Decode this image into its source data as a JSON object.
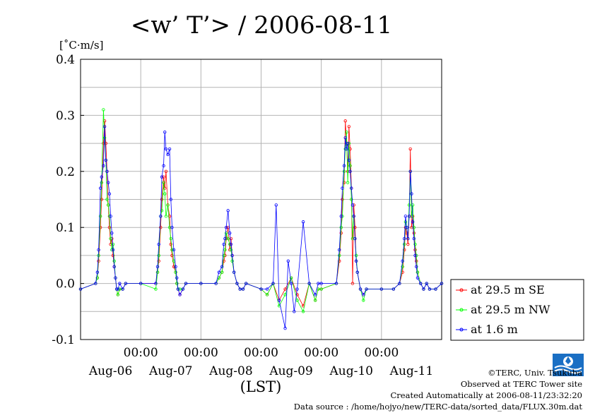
{
  "chart_data": {
    "type": "line",
    "title": "<w’ T’> / 2006-08-11",
    "ylabel": "[˚C·m/s]",
    "xlabel": "(LST)",
    "ylim": [
      -0.1,
      0.4
    ],
    "yticks": [
      "0.4",
      "0.3",
      "0.2",
      "0.1",
      "0.0",
      "-0.1"
    ],
    "xlim_days": [
      0,
      6
    ],
    "xtick_times": [
      "00:00",
      "00:00",
      "00:00",
      "00:00",
      "00:00"
    ],
    "xtick_days": [
      "Aug-06",
      "Aug-07",
      "Aug-08",
      "Aug-09",
      "Aug-10",
      "Aug-11"
    ],
    "grid": true,
    "legend_position": "right",
    "series": [
      {
        "name": "at 29.5 m SE",
        "color": "#ff0000",
        "x": [
          0.0,
          0.25,
          0.28,
          0.3,
          0.33,
          0.35,
          0.38,
          0.4,
          0.42,
          0.44,
          0.46,
          0.48,
          0.5,
          0.52,
          0.54,
          0.56,
          0.58,
          0.6,
          0.62,
          0.65,
          0.7,
          0.75,
          1.0,
          1.25,
          1.28,
          1.3,
          1.33,
          1.35,
          1.38,
          1.4,
          1.42,
          1.45,
          1.48,
          1.5,
          1.52,
          1.55,
          1.58,
          1.6,
          1.62,
          1.65,
          1.7,
          1.75,
          2.0,
          2.25,
          2.3,
          2.35,
          2.38,
          2.4,
          2.42,
          2.45,
          2.48,
          2.5,
          2.52,
          2.55,
          2.6,
          2.65,
          2.7,
          2.75,
          3.0,
          3.1,
          3.2,
          3.3,
          3.4,
          3.5,
          3.6,
          3.7,
          3.8,
          3.9,
          3.95,
          4.0,
          4.25,
          4.3,
          4.33,
          4.35,
          4.38,
          4.4,
          4.42,
          4.44,
          4.46,
          4.48,
          4.5,
          4.52,
          4.54,
          4.56,
          4.58,
          4.6,
          4.65,
          4.7,
          4.75,
          5.0,
          5.2,
          5.3,
          5.35,
          5.38,
          5.4,
          5.42,
          5.44,
          5.46,
          5.48,
          5.5,
          5.52,
          5.54,
          5.56,
          5.58,
          5.6,
          5.65,
          5.7,
          5.75,
          5.8,
          5.9,
          6.0
        ],
        "y": [
          -0.01,
          0.0,
          0.01,
          0.04,
          0.1,
          0.15,
          0.25,
          0.29,
          0.25,
          0.2,
          0.14,
          0.1,
          0.07,
          0.08,
          0.05,
          0.03,
          0.01,
          -0.01,
          -0.02,
          -0.01,
          -0.01,
          0.0,
          0.0,
          0.0,
          0.02,
          0.04,
          0.1,
          0.15,
          0.19,
          0.17,
          0.2,
          0.14,
          0.12,
          0.07,
          0.05,
          0.03,
          0.02,
          0.0,
          -0.01,
          -0.02,
          -0.01,
          0.0,
          0.0,
          0.0,
          0.01,
          0.02,
          0.04,
          0.05,
          0.08,
          0.1,
          0.06,
          0.08,
          0.05,
          0.02,
          0.0,
          -0.01,
          -0.01,
          0.0,
          -0.01,
          -0.02,
          0.0,
          -0.03,
          -0.01,
          0.01,
          -0.02,
          -0.04,
          0.0,
          -0.03,
          -0.01,
          -0.01,
          0.0,
          0.04,
          0.09,
          0.15,
          0.18,
          0.29,
          0.25,
          0.2,
          0.28,
          0.24,
          0.17,
          0.0,
          0.14,
          0.1,
          0.04,
          0.02,
          -0.01,
          -0.02,
          -0.01,
          -0.01,
          -0.01,
          0.0,
          0.02,
          0.06,
          0.1,
          0.09,
          0.07,
          0.12,
          0.24,
          0.1,
          0.12,
          0.09,
          0.06,
          0.04,
          0.02,
          0.0,
          -0.01,
          0.0,
          -0.01,
          -0.01,
          0.0
        ]
      },
      {
        "name": "at 29.5 m NW",
        "color": "#00ff00",
        "x": [
          0.0,
          0.25,
          0.28,
          0.3,
          0.33,
          0.35,
          0.38,
          0.4,
          0.42,
          0.44,
          0.46,
          0.48,
          0.5,
          0.52,
          0.54,
          0.56,
          0.58,
          0.6,
          0.62,
          0.65,
          0.7,
          0.75,
          1.0,
          1.25,
          1.28,
          1.3,
          1.33,
          1.35,
          1.38,
          1.4,
          1.42,
          1.45,
          1.48,
          1.5,
          1.52,
          1.55,
          1.58,
          1.6,
          1.62,
          1.65,
          1.7,
          1.75,
          2.0,
          2.25,
          2.3,
          2.35,
          2.38,
          2.4,
          2.42,
          2.45,
          2.48,
          2.5,
          2.52,
          2.55,
          2.6,
          2.65,
          2.7,
          2.75,
          3.0,
          3.1,
          3.2,
          3.3,
          3.4,
          3.5,
          3.6,
          3.7,
          3.8,
          3.9,
          3.95,
          4.0,
          4.25,
          4.3,
          4.33,
          4.35,
          4.38,
          4.4,
          4.42,
          4.44,
          4.46,
          4.48,
          4.5,
          4.52,
          4.54,
          4.56,
          4.58,
          4.6,
          4.65,
          4.7,
          4.75,
          5.0,
          5.2,
          5.3,
          5.35,
          5.38,
          5.4,
          5.42,
          5.44,
          5.46,
          5.48,
          5.5,
          5.52,
          5.54,
          5.56,
          5.58,
          5.6,
          5.65,
          5.7,
          5.75,
          5.8,
          5.9,
          6.0
        ],
        "y": [
          -0.01,
          0.0,
          0.01,
          0.05,
          0.12,
          0.18,
          0.31,
          0.26,
          0.22,
          0.15,
          0.14,
          0.12,
          0.08,
          0.06,
          0.07,
          0.04,
          0.01,
          -0.01,
          -0.02,
          -0.01,
          -0.01,
          0.0,
          0.0,
          -0.01,
          0.02,
          0.05,
          0.12,
          0.13,
          0.18,
          0.16,
          0.12,
          0.14,
          0.1,
          0.08,
          0.06,
          0.04,
          0.02,
          0.0,
          -0.01,
          -0.01,
          -0.01,
          0.0,
          0.0,
          0.0,
          0.01,
          0.02,
          0.05,
          0.06,
          0.09,
          0.08,
          0.07,
          0.06,
          0.04,
          0.02,
          0.0,
          -0.01,
          -0.01,
          0.0,
          -0.01,
          -0.02,
          0.0,
          -0.04,
          -0.02,
          0.01,
          -0.03,
          -0.05,
          0.0,
          -0.03,
          -0.01,
          -0.01,
          0.0,
          0.05,
          0.1,
          0.12,
          0.2,
          0.24,
          0.27,
          0.18,
          0.25,
          0.21,
          0.15,
          0.08,
          0.12,
          0.08,
          0.05,
          0.02,
          -0.01,
          -0.03,
          -0.01,
          -0.01,
          -0.01,
          0.0,
          0.03,
          0.07,
          0.11,
          0.1,
          0.08,
          0.14,
          0.2,
          0.12,
          0.14,
          0.1,
          0.07,
          0.05,
          0.02,
          0.0,
          -0.01,
          0.0,
          -0.01,
          -0.01,
          0.0
        ]
      },
      {
        "name": "at 1.6 m",
        "color": "#0000ff",
        "x": [
          0.0,
          0.25,
          0.28,
          0.3,
          0.33,
          0.35,
          0.38,
          0.4,
          0.42,
          0.44,
          0.46,
          0.48,
          0.5,
          0.52,
          0.54,
          0.56,
          0.58,
          0.6,
          0.62,
          0.65,
          0.7,
          0.75,
          1.0,
          1.25,
          1.28,
          1.3,
          1.33,
          1.35,
          1.38,
          1.4,
          1.42,
          1.45,
          1.48,
          1.5,
          1.52,
          1.55,
          1.58,
          1.6,
          1.62,
          1.65,
          1.7,
          1.75,
          2.0,
          2.25,
          2.3,
          2.35,
          2.38,
          2.4,
          2.42,
          2.45,
          2.48,
          2.5,
          2.52,
          2.55,
          2.6,
          2.65,
          2.7,
          2.75,
          3.0,
          3.1,
          3.2,
          3.25,
          3.3,
          3.4,
          3.45,
          3.5,
          3.55,
          3.6,
          3.7,
          3.8,
          3.9,
          3.95,
          4.0,
          4.25,
          4.3,
          4.33,
          4.35,
          4.38,
          4.4,
          4.42,
          4.44,
          4.46,
          4.48,
          4.5,
          4.52,
          4.54,
          4.56,
          4.58,
          4.6,
          4.65,
          4.7,
          4.75,
          5.0,
          5.2,
          5.3,
          5.35,
          5.38,
          5.4,
          5.42,
          5.44,
          5.46,
          5.48,
          5.5,
          5.52,
          5.54,
          5.56,
          5.58,
          5.6,
          5.65,
          5.7,
          5.75,
          5.8,
          5.9,
          6.0
        ],
        "y": [
          -0.01,
          0.0,
          0.02,
          0.06,
          0.17,
          0.19,
          0.21,
          0.28,
          0.22,
          0.2,
          0.18,
          0.16,
          0.12,
          0.09,
          0.06,
          0.03,
          0.01,
          -0.01,
          -0.01,
          0.0,
          -0.01,
          0.0,
          0.0,
          0.0,
          0.03,
          0.07,
          0.12,
          0.19,
          0.21,
          0.27,
          0.24,
          0.23,
          0.24,
          0.15,
          0.1,
          0.06,
          0.03,
          0.01,
          -0.01,
          -0.02,
          -0.01,
          0.0,
          0.0,
          0.0,
          0.02,
          0.03,
          0.07,
          0.08,
          0.1,
          0.13,
          0.09,
          0.07,
          0.05,
          0.02,
          0.0,
          -0.01,
          -0.01,
          0.0,
          -0.01,
          -0.01,
          0.0,
          0.14,
          -0.03,
          -0.08,
          0.04,
          0.0,
          -0.05,
          -0.01,
          0.11,
          0.0,
          -0.02,
          0.0,
          0.0,
          0.0,
          0.06,
          0.12,
          0.17,
          0.21,
          0.26,
          0.24,
          0.25,
          0.22,
          0.2,
          0.17,
          0.14,
          0.12,
          0.08,
          0.04,
          0.02,
          -0.01,
          -0.02,
          -0.01,
          -0.01,
          -0.01,
          0.0,
          0.04,
          0.08,
          0.12,
          0.1,
          0.08,
          0.12,
          0.2,
          0.16,
          0.11,
          0.08,
          0.05,
          0.03,
          0.01,
          0.0,
          -0.01,
          0.0,
          -0.01,
          -0.01,
          0.0
        ]
      }
    ]
  },
  "footer": {
    "copyright": "©TERC, Univ. Tsukuba",
    "observed": "Observed at TERC Tower site",
    "created": "Created Automatically at 2006-08-11/23:32:20",
    "source": "Data source : /home/hojyo/new/TERC-data/sorted_data/FLUX.30m.dat"
  },
  "logo": {
    "name": "terc-logo",
    "color": "#1a6fc4"
  }
}
